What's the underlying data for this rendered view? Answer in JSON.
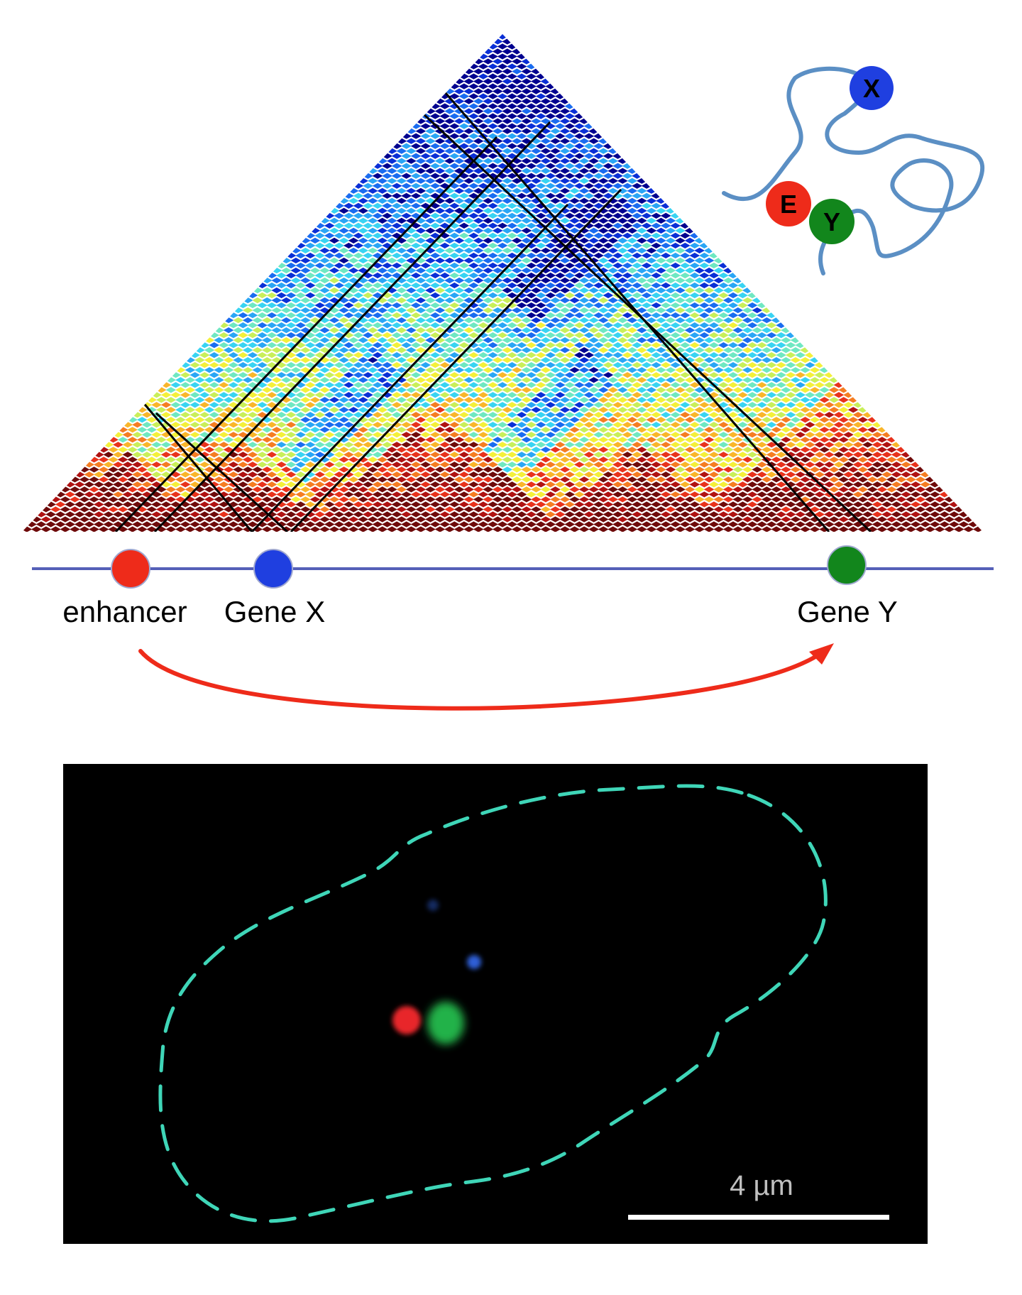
{
  "hic_map": {
    "colormap": [
      "#00008f",
      "#0a2fd6",
      "#1a6cf0",
      "#2aa6f5",
      "#39d4f2",
      "#6fe8c2",
      "#c9ef5a",
      "#f4f03a",
      "#f9b62a",
      "#f57d22",
      "#e8321c",
      "#b01212",
      "#6e0a0a"
    ]
  },
  "loop_schematic": {
    "chain_color": "#5b8fc4",
    "nodes": [
      {
        "label": "X",
        "color": "#1f3fe0"
      },
      {
        "label": "E",
        "color": "#ee2b1a"
      },
      {
        "label": "Y",
        "color": "#12861c"
      }
    ]
  },
  "genome_track": {
    "line_color": "#5560b8",
    "loci": [
      {
        "label": "enhancer",
        "color": "#ee2b1a"
      },
      {
        "label": "Gene X",
        "color": "#1f3fe0"
      },
      {
        "label": "Gene Y",
        "color": "#12861c"
      }
    ],
    "arrow_color": "#ee2b1a"
  },
  "microscopy": {
    "background": "#000000",
    "outline_color": "#3fd6b8",
    "spots": [
      {
        "color": "#e8262a"
      },
      {
        "color": "#22b24a"
      },
      {
        "color": "#2f5fd6"
      }
    ],
    "scale_bar": {
      "label": "4 µm",
      "color": "#ffffff"
    }
  }
}
